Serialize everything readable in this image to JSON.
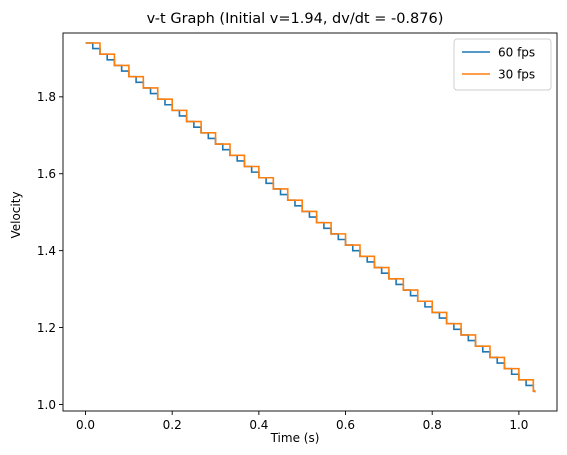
{
  "chart_data": {
    "type": "line",
    "title": "v-t Graph (Initial v=1.94, dv/dt = -0.876)",
    "xlabel": "Time (s)",
    "ylabel": "Velocity",
    "xlim": [
      -0.052,
      1.088
    ],
    "ylim": [
      0.983,
      1.966
    ],
    "xticks": [
      0.0,
      0.2,
      0.4,
      0.6,
      0.8,
      1.0
    ],
    "xtick_labels": [
      "0.0",
      "0.2",
      "0.4",
      "0.6",
      "0.8",
      "1.0"
    ],
    "yticks": [
      1.0,
      1.2,
      1.4,
      1.6,
      1.8
    ],
    "ytick_labels": [
      "1.0",
      "1.2",
      "1.4",
      "1.6",
      "1.8"
    ],
    "grid": false,
    "legend_position": "top-right",
    "initial_velocity": 1.94,
    "acceleration": -0.876,
    "t_end": 1.0367,
    "series": [
      {
        "name": "60 fps",
        "color": "#1f77b4",
        "step_dt": 0.016667
      },
      {
        "name": "30 fps",
        "color": "#ff7f0e",
        "step_dt": 0.033333
      }
    ]
  }
}
